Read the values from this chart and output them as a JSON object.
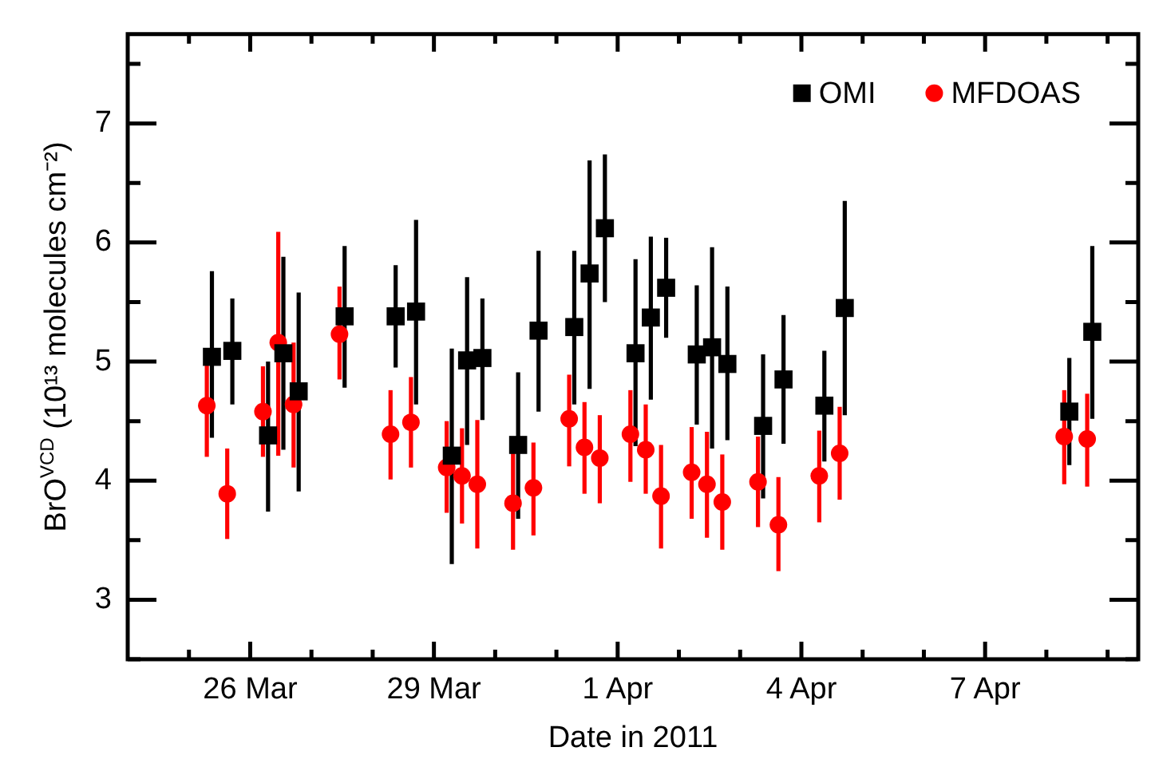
{
  "chart_data": {
    "type": "scatter",
    "xlabel": "Date in 2011",
    "ylabel": "BrO$^{VCD}$ (10¹³ molecules cm⁻²)",
    "xlim": [
      "2011-03-24",
      "2011-04-09T12:00"
    ],
    "xticks": [
      {
        "value": "2011-03-25",
        "label": null
      },
      {
        "value": "2011-03-26",
        "label": "26 Mar"
      },
      {
        "value": "2011-03-27",
        "label": null
      },
      {
        "value": "2011-03-28",
        "label": null
      },
      {
        "value": "2011-03-29",
        "label": "29 Mar"
      },
      {
        "value": "2011-03-30",
        "label": null
      },
      {
        "value": "2011-03-31",
        "label": null
      },
      {
        "value": "2011-04-01",
        "label": "1 Apr"
      },
      {
        "value": "2011-04-02",
        "label": null
      },
      {
        "value": "2011-04-03",
        "label": null
      },
      {
        "value": "2011-04-04",
        "label": "4 Apr"
      },
      {
        "value": "2011-04-05",
        "label": null
      },
      {
        "value": "2011-04-06",
        "label": null
      },
      {
        "value": "2011-04-07",
        "label": "7 Apr"
      },
      {
        "value": "2011-04-08",
        "label": null
      },
      {
        "value": "2011-04-09",
        "label": null
      }
    ],
    "ylim": [
      2.5,
      7.75
    ],
    "yticks": [
      {
        "value": 2.5,
        "label": null
      },
      3,
      {
        "value": 3.5,
        "label": null
      },
      4,
      {
        "value": 4.5,
        "label": null
      },
      5,
      {
        "value": 5.5,
        "label": null
      },
      6,
      {
        "value": 6.5,
        "label": null
      },
      7,
      {
        "value": 7.5,
        "label": null
      }
    ],
    "grid": false,
    "legend": "top right",
    "series": [
      {
        "name": "OMI",
        "color": "#000000",
        "marker": "square",
        "x": [
          "2011-03-25T09:00",
          "2011-03-25T17:00",
          "2011-03-26T07:00",
          "2011-03-26T13:00",
          "2011-03-26T19:00",
          "2011-03-27T13:00",
          "2011-03-28T09:00",
          "2011-03-28T17:00",
          "2011-03-29T07:00",
          "2011-03-29T13:00",
          "2011-03-29T19:00",
          "2011-03-30T09:00",
          "2011-03-30T17:00",
          "2011-03-31T07:00",
          "2011-03-31T13:00",
          "2011-03-31T19:00",
          "2011-04-01T07:00",
          "2011-04-01T13:00",
          "2011-04-01T19:00",
          "2011-04-02T07:00",
          "2011-04-02T13:00",
          "2011-04-02T19:00",
          "2011-04-03T09:00",
          "2011-04-03T17:00",
          "2011-04-04T09:00",
          "2011-04-04T17:00",
          "2011-04-08T09:00",
          "2011-04-08T18:00"
        ],
        "values": [
          5.04,
          5.09,
          4.38,
          5.07,
          4.75,
          5.38,
          5.38,
          5.42,
          4.21,
          5.01,
          5.03,
          4.3,
          5.26,
          5.29,
          5.74,
          6.12,
          5.07,
          5.37,
          5.62,
          5.06,
          5.12,
          4.98,
          4.46,
          4.85,
          4.63,
          5.45,
          4.58,
          5.25
        ],
        "errors": [
          [
            4.36,
            5.76
          ],
          [
            4.64,
            5.53
          ],
          [
            3.74,
            5.0
          ],
          [
            4.26,
            5.88
          ],
          [
            3.91,
            5.58
          ],
          [
            4.78,
            5.97
          ],
          [
            4.95,
            5.81
          ],
          [
            4.64,
            6.19
          ],
          [
            3.3,
            5.11
          ],
          [
            4.3,
            5.71
          ],
          [
            4.51,
            5.53
          ],
          [
            3.68,
            4.91
          ],
          [
            4.58,
            5.93
          ],
          [
            4.64,
            5.93
          ],
          [
            4.77,
            6.69
          ],
          [
            5.5,
            6.74
          ],
          [
            4.29,
            5.86
          ],
          [
            4.68,
            6.05
          ],
          [
            5.2,
            6.04
          ],
          [
            4.47,
            5.64
          ],
          [
            4.27,
            5.96
          ],
          [
            4.34,
            5.63
          ],
          [
            3.85,
            5.06
          ],
          [
            4.31,
            5.39
          ],
          [
            4.16,
            5.09
          ],
          [
            4.55,
            6.35
          ],
          [
            4.13,
            5.03
          ],
          [
            4.52,
            5.97
          ]
        ]
      },
      {
        "name": "MFDOAS",
        "color": "#ff0000",
        "marker": "circle",
        "x": [
          "2011-03-25T07:00",
          "2011-03-25T15:00",
          "2011-03-26T05:00",
          "2011-03-26T11:00",
          "2011-03-26T17:00",
          "2011-03-27T11:00",
          "2011-03-28T07:00",
          "2011-03-28T15:00",
          "2011-03-29T05:00",
          "2011-03-29T11:00",
          "2011-03-29T17:00",
          "2011-03-30T07:00",
          "2011-03-30T15:00",
          "2011-03-31T05:00",
          "2011-03-31T11:00",
          "2011-03-31T17:00",
          "2011-04-01T05:00",
          "2011-04-01T11:00",
          "2011-04-01T17:00",
          "2011-04-02T05:00",
          "2011-04-02T11:00",
          "2011-04-02T17:00",
          "2011-04-03T07:00",
          "2011-04-03T15:00",
          "2011-04-04T07:00",
          "2011-04-04T15:00",
          "2011-04-08T07:00",
          "2011-04-08T16:00"
        ],
        "values": [
          4.63,
          3.89,
          4.58,
          5.16,
          4.64,
          5.23,
          4.39,
          4.49,
          4.11,
          4.04,
          3.97,
          3.81,
          3.94,
          4.52,
          4.28,
          4.19,
          4.39,
          4.26,
          3.87,
          4.07,
          3.97,
          3.82,
          3.99,
          3.63,
          4.04,
          4.23,
          4.37,
          4.35
        ],
        "errors": [
          [
            4.2,
            4.98
          ],
          [
            3.51,
            4.27
          ],
          [
            4.2,
            4.96
          ],
          [
            4.21,
            6.09
          ],
          [
            4.11,
            5.16
          ],
          [
            4.85,
            5.63
          ],
          [
            4.01,
            4.76
          ],
          [
            4.11,
            4.87
          ],
          [
            3.73,
            4.5
          ],
          [
            3.64,
            4.44
          ],
          [
            3.43,
            4.51
          ],
          [
            3.42,
            4.32
          ],
          [
            3.54,
            4.32
          ],
          [
            4.12,
            4.89
          ],
          [
            3.89,
            4.66
          ],
          [
            3.81,
            4.55
          ],
          [
            3.99,
            4.76
          ],
          [
            3.89,
            4.64
          ],
          [
            3.43,
            4.3
          ],
          [
            3.68,
            4.45
          ],
          [
            3.52,
            4.41
          ],
          [
            3.42,
            4.22
          ],
          [
            3.61,
            4.37
          ],
          [
            3.24,
            4.03
          ],
          [
            3.65,
            4.42
          ],
          [
            3.84,
            4.62
          ],
          [
            3.97,
            4.76
          ],
          [
            3.95,
            4.73
          ]
        ]
      }
    ]
  }
}
